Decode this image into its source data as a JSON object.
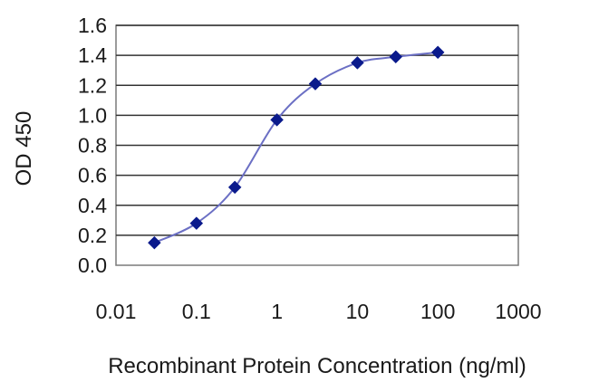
{
  "chart_data": {
    "type": "line",
    "title": "",
    "xlabel": "Recombinant Protein Concentration (ng/ml)",
    "ylabel": "OD 450",
    "x_scale": "log",
    "xlim": [
      0.01,
      1000
    ],
    "ylim": [
      0.0,
      1.6
    ],
    "x_ticks": [
      "0.01",
      "0.1",
      "1",
      "10",
      "100",
      "1000"
    ],
    "y_ticks": [
      "0.0",
      "0.2",
      "0.4",
      "0.6",
      "0.8",
      "1.0",
      "1.2",
      "1.4",
      "1.6"
    ],
    "grid": "horizontal",
    "legend": "none",
    "series": [
      {
        "name": "",
        "color": "#0a1a8c",
        "line_color": "#6b6fc4",
        "marker": "diamond",
        "x": [
          0.03,
          0.1,
          0.3,
          1,
          3,
          10,
          30,
          100
        ],
        "y": [
          0.15,
          0.28,
          0.52,
          0.97,
          1.21,
          1.35,
          1.39,
          1.42
        ]
      }
    ]
  }
}
